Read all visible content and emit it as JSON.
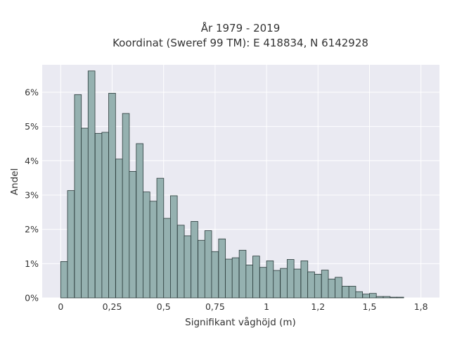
{
  "chart_data": {
    "type": "bar",
    "title_line1": "År 1979 - 2019",
    "title_line2": "Koordinat (Sweref 99 TM): E 418834, N 6142928",
    "xlabel": "Signifikant våghöjd (m)",
    "ylabel": "Andel",
    "xlim": [
      -0.09,
      1.84
    ],
    "ylim": [
      0,
      6.8
    ],
    "bin_width": 0.0333,
    "x_ticks": [
      {
        "value": 0,
        "label": "0"
      },
      {
        "value": 0.25,
        "label": "0,25"
      },
      {
        "value": 0.5,
        "label": "0,5"
      },
      {
        "value": 0.75,
        "label": "0,75"
      },
      {
        "value": 1.0,
        "label": "1"
      },
      {
        "value": 1.25,
        "label": "1,2"
      },
      {
        "value": 1.5,
        "label": "1,5"
      },
      {
        "value": 1.75,
        "label": "1,8"
      }
    ],
    "y_ticks": [
      {
        "value": 0,
        "label": "0%"
      },
      {
        "value": 1,
        "label": "1%"
      },
      {
        "value": 2,
        "label": "2%"
      },
      {
        "value": 3,
        "label": "3%"
      },
      {
        "value": 4,
        "label": "4%"
      },
      {
        "value": 5,
        "label": "5%"
      },
      {
        "value": 6,
        "label": "6%"
      }
    ],
    "bins_start": [
      0.0,
      0.033,
      0.067,
      0.1,
      0.133,
      0.167,
      0.2,
      0.233,
      0.267,
      0.3,
      0.333,
      0.367,
      0.4,
      0.433,
      0.467,
      0.5,
      0.533,
      0.567,
      0.6,
      0.633,
      0.667,
      0.7,
      0.733,
      0.767,
      0.8,
      0.833,
      0.867,
      0.9,
      0.933,
      0.967,
      1.0,
      1.033,
      1.067,
      1.1,
      1.133,
      1.167,
      1.2,
      1.233,
      1.267,
      1.3,
      1.333,
      1.367,
      1.4,
      1.433,
      1.467,
      1.5,
      1.533,
      1.567,
      1.6,
      1.633,
      1.667,
      1.7,
      1.733
    ],
    "values": [
      1.06,
      3.13,
      5.93,
      4.95,
      6.62,
      4.8,
      4.83,
      5.97,
      4.05,
      5.38,
      3.69,
      4.5,
      3.09,
      2.82,
      3.49,
      2.32,
      2.98,
      2.12,
      1.81,
      2.23,
      1.68,
      1.96,
      1.35,
      1.72,
      1.13,
      1.17,
      1.39,
      0.96,
      1.22,
      0.89,
      1.08,
      0.8,
      0.86,
      1.12,
      0.84,
      1.08,
      0.76,
      0.69,
      0.81,
      0.55,
      0.6,
      0.34,
      0.34,
      0.18,
      0.11,
      0.13,
      0.04,
      0.04,
      0.02,
      0.02,
      0.0,
      0.0,
      0.0
    ],
    "colors": {
      "bar_fill": "#95b1b0",
      "bar_edge": "#2a3a3a",
      "plot_bg": "#eaeaf2",
      "grid": "#ffffff"
    },
    "grid": true
  }
}
